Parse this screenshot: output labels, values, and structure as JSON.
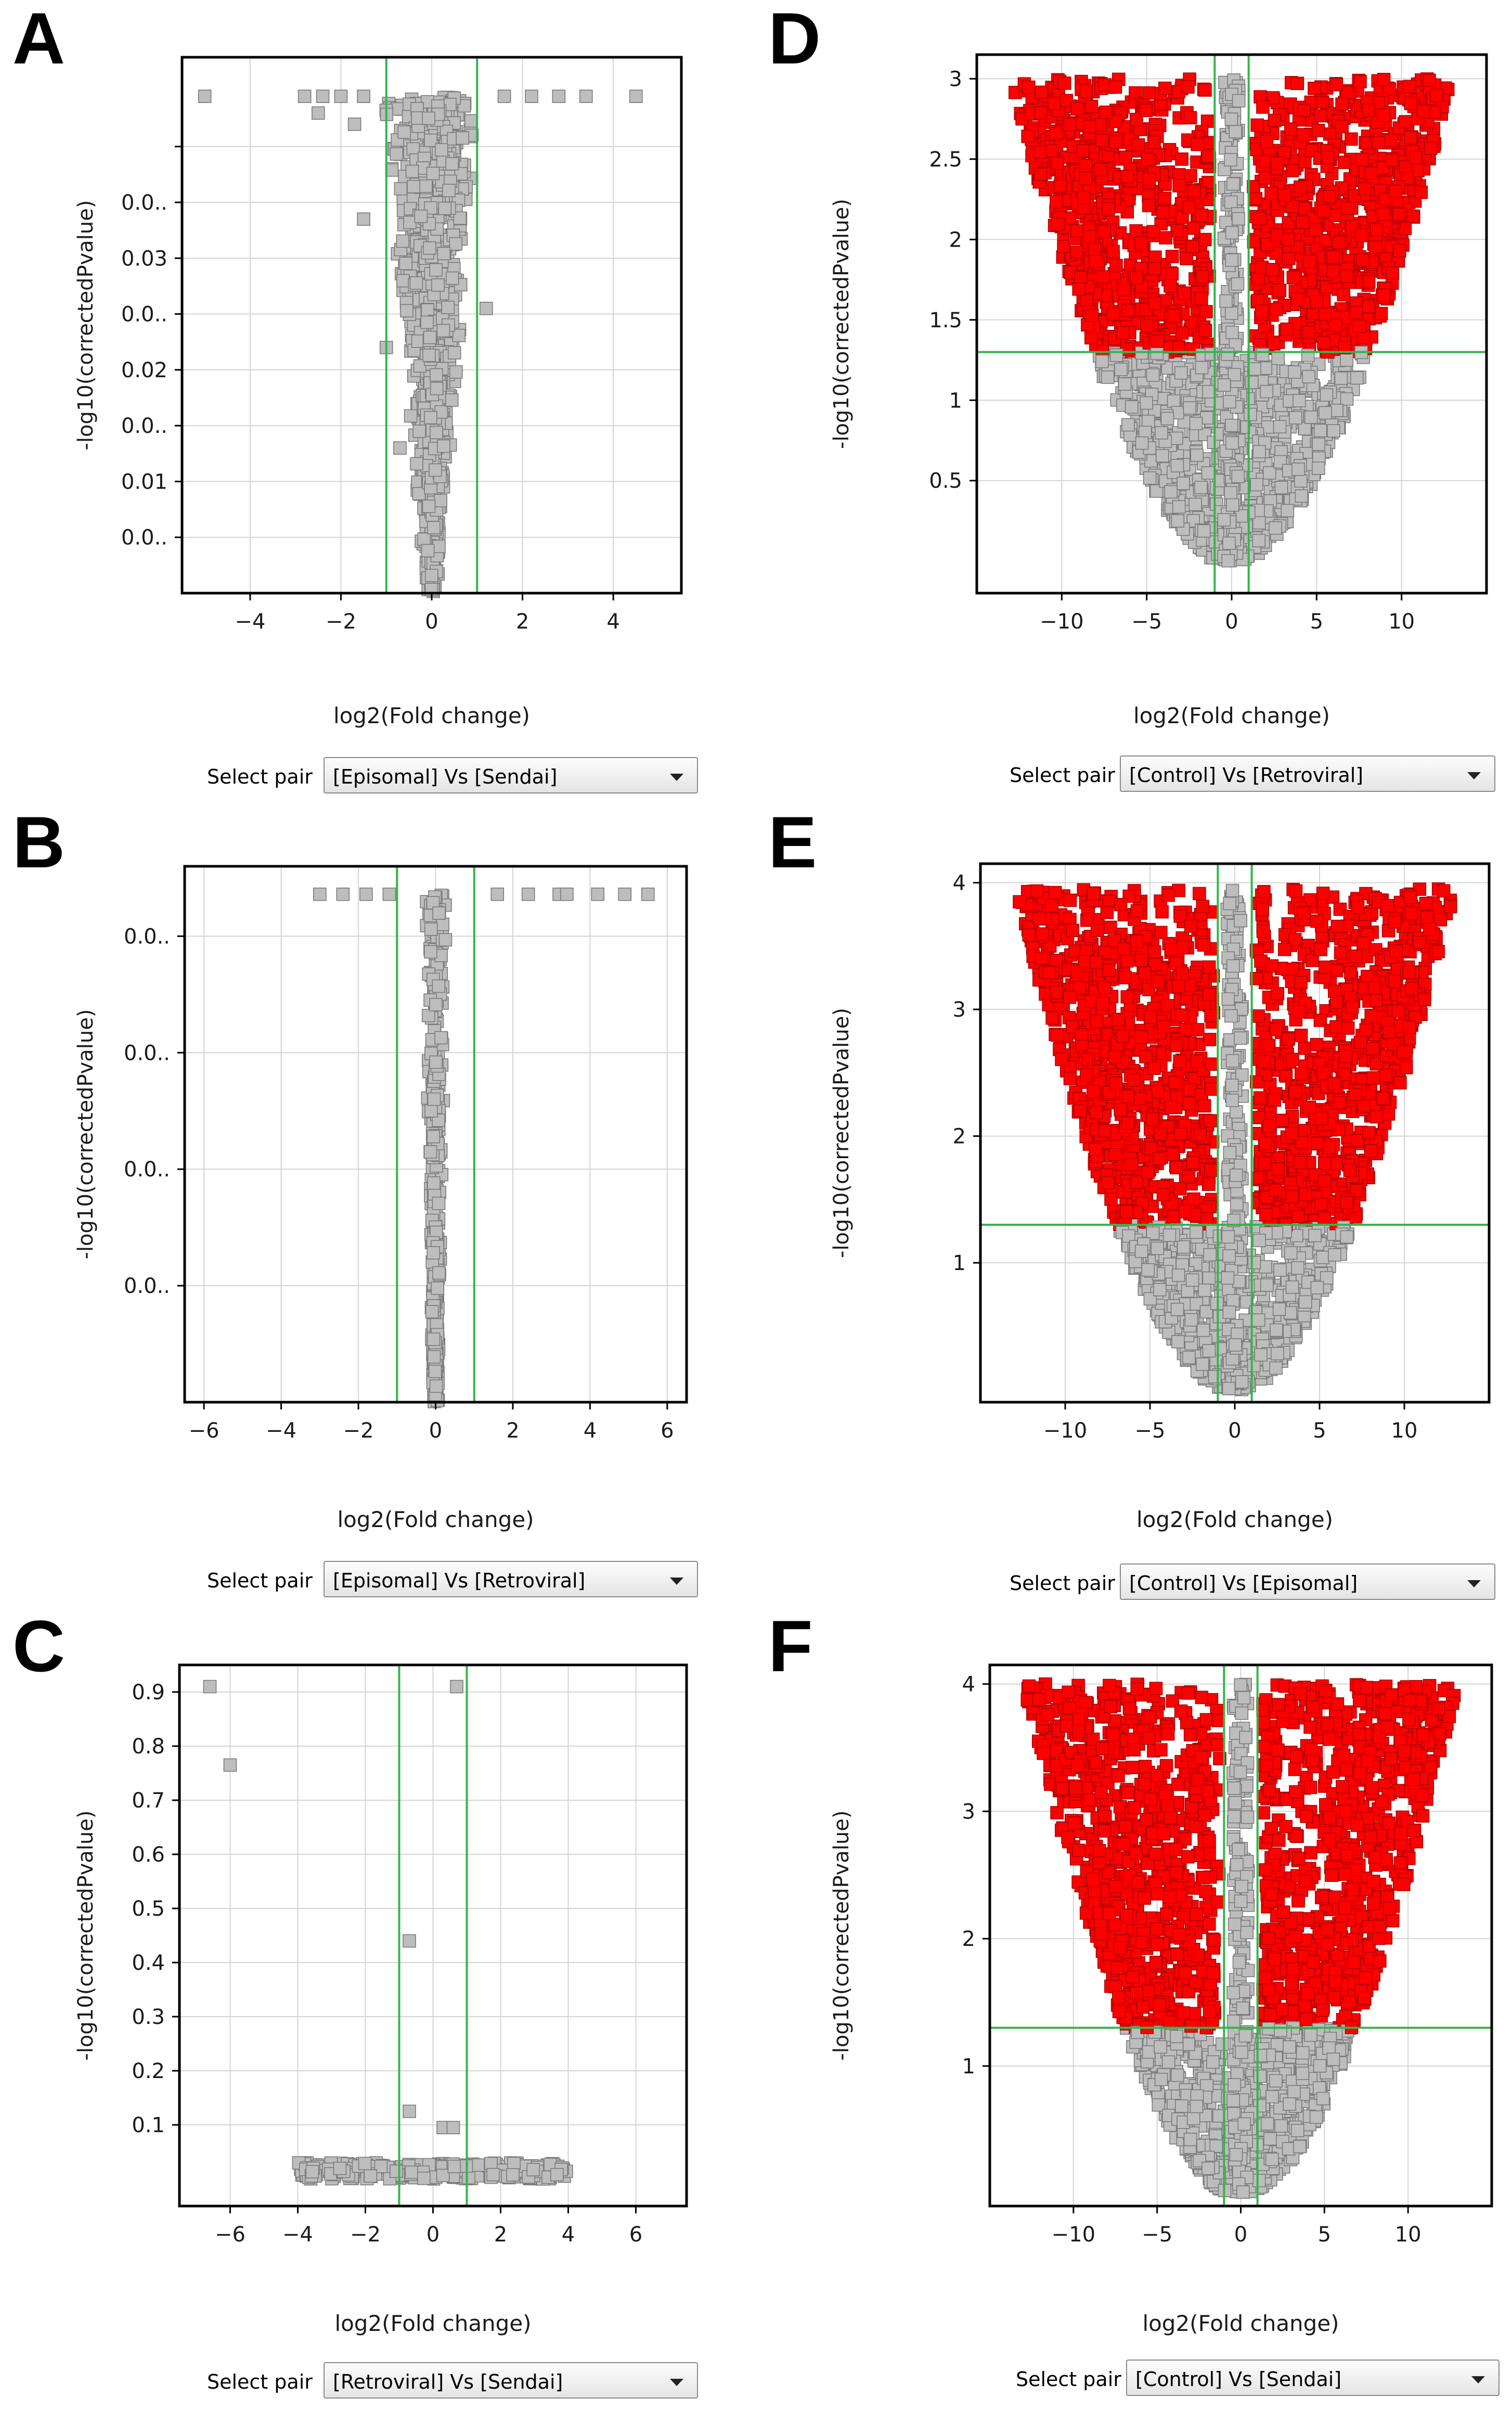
{
  "common": {
    "xlabel": "log2(Fold change)",
    "ylabel": "-log10(correctedPvalue)",
    "select_label": "Select pair",
    "colors": {
      "significant": "#ff0000",
      "nonsignificant": "#bdbdbd",
      "threshold": "#33b54a",
      "grid": "#d4d4d4"
    }
  },
  "panels": [
    {
      "letter": "A",
      "select_value": "[Episomal] Vs [Sendai]"
    },
    {
      "letter": "B",
      "select_value": "[Episomal] Vs [Retroviral]"
    },
    {
      "letter": "C",
      "select_value": "[Retroviral] Vs [Sendai]"
    },
    {
      "letter": "D",
      "select_value": "[Control] Vs [Retroviral]"
    },
    {
      "letter": "E",
      "select_value": "[Control] Vs [Episomal]"
    },
    {
      "letter": "F",
      "select_value": "[Control] Vs [Sendai]"
    }
  ],
  "chart_data": [
    {
      "panel": "A",
      "type": "scatter",
      "title": "",
      "xlabel": "log2(Fold change)",
      "ylabel": "-log10(correctedPvalue)",
      "xlim": [
        -5.5,
        5.5
      ],
      "ylim": [
        0,
        0.048
      ],
      "xticks": [
        -4,
        -2,
        0,
        2,
        4
      ],
      "yticks": [
        0.005,
        0.01,
        0.015,
        0.02,
        0.025,
        0.03,
        0.035,
        0.04
      ],
      "ytick_labels": [
        "0.0..",
        "0.01",
        "0.0..",
        "0.02",
        "0.0..",
        "0.03",
        "0.0.."
      ],
      "ytick_label_values": [
        0.005,
        0.01,
        0.015,
        0.02,
        0.025,
        0.03,
        0.035
      ],
      "xtick_labels": [
        "−4",
        "−2",
        "0",
        "2",
        "4"
      ],
      "vlines": [
        -1,
        1
      ],
      "hline": null,
      "grid": true,
      "legend": "none",
      "points": [
        [
          -5,
          0.0445
        ],
        [
          4.5,
          0.0445
        ],
        [
          -2.8,
          0.0445
        ],
        [
          -2.4,
          0.0445
        ],
        [
          -2.0,
          0.0445
        ],
        [
          -1.5,
          0.0445
        ],
        [
          1.6,
          0.0445
        ],
        [
          2.2,
          0.0445
        ],
        [
          2.8,
          0.0445
        ],
        [
          3.4,
          0.0445
        ],
        [
          -2.5,
          0.043
        ],
        [
          -1.7,
          0.042
        ],
        [
          -1.5,
          0.0335
        ],
        [
          1.2,
          0.0255
        ],
        [
          -1.0,
          0.022
        ],
        [
          -0.7,
          0.013
        ]
      ],
      "cloud": {
        "shape": "funnel",
        "x_center": 0,
        "x_halfwidth_top": 1.1,
        "x_halfwidth_bottom": 0.15,
        "y_from": 0,
        "y_to": 0.0445,
        "count": 950,
        "significant": false
      }
    },
    {
      "panel": "B",
      "type": "scatter",
      "title": "",
      "xlabel": "log2(Fold change)",
      "ylabel": "-log10(correctedPvalue)",
      "xlim": [
        -6.5,
        6.5
      ],
      "ylim": [
        0,
        0.023
      ],
      "xticks": [
        -6,
        -4,
        -2,
        0,
        2,
        4,
        6
      ],
      "yticks": [
        0.005,
        0.01,
        0.015,
        0.02
      ],
      "ytick_labels": [
        "0.0..",
        "0.0..",
        "0.0..",
        "0.0.."
      ],
      "ytick_label_values": [
        0.005,
        0.01,
        0.015,
        0.02
      ],
      "xtick_labels": [
        "−6",
        "−4",
        "−2",
        "0",
        "2",
        "4",
        "6"
      ],
      "vlines": [
        -1,
        1
      ],
      "hline": null,
      "grid": true,
      "legend": "none",
      "points": [
        [
          -3.0,
          0.0218
        ],
        [
          -2.4,
          0.0218
        ],
        [
          -1.8,
          0.0218
        ],
        [
          -1.2,
          0.0218
        ],
        [
          1.6,
          0.0218
        ],
        [
          2.4,
          0.0218
        ],
        [
          3.2,
          0.0218
        ],
        [
          3.4,
          0.0218
        ],
        [
          4.2,
          0.0218
        ],
        [
          4.9,
          0.0218
        ],
        [
          5.5,
          0.0218
        ]
      ],
      "cloud": {
        "shape": "column",
        "x_center": 0,
        "x_halfwidth_top": 0.3,
        "x_halfwidth_bottom": 0.08,
        "y_from": 0,
        "y_to": 0.0218,
        "count": 380,
        "significant": false
      }
    },
    {
      "panel": "C",
      "type": "scatter",
      "title": "",
      "xlabel": "log2(Fold change)",
      "ylabel": "-log10(correctedPvalue)",
      "xlim": [
        -7.5,
        7.5
      ],
      "ylim": [
        -0.05,
        0.95
      ],
      "xticks": [
        -6,
        -4,
        -2,
        0,
        2,
        4,
        6
      ],
      "yticks": [
        0.1,
        0.2,
        0.3,
        0.4,
        0.5,
        0.6,
        0.7,
        0.8,
        0.9
      ],
      "ytick_labels": [
        "0.1",
        "0.2",
        "0.3",
        "0.4",
        "0.5",
        "0.6",
        "0.7",
        "0.8",
        "0.9"
      ],
      "ytick_label_values": [
        0.1,
        0.2,
        0.3,
        0.4,
        0.5,
        0.6,
        0.7,
        0.8,
        0.9
      ],
      "xtick_labels": [
        "−6",
        "−4",
        "−2",
        "0",
        "2",
        "4",
        "6"
      ],
      "vlines": [
        -1,
        1
      ],
      "hline": null,
      "grid": true,
      "legend": "none",
      "points": [
        [
          -6.6,
          0.91
        ],
        [
          -6.0,
          0.765
        ],
        [
          0.7,
          0.91
        ],
        [
          -0.7,
          0.44
        ],
        [
          -0.7,
          0.125
        ],
        [
          0.3,
          0.095
        ],
        [
          0.6,
          0.095
        ]
      ],
      "cloud": {
        "shape": "band",
        "x_center": 0,
        "x_halfwidth_top": 4.0,
        "x_halfwidth_bottom": 3.9,
        "y_from": 0.0,
        "y_to": 0.03,
        "count": 260,
        "significant": false
      }
    },
    {
      "panel": "D",
      "type": "scatter",
      "title": "",
      "xlabel": "log2(Fold change)",
      "ylabel": "-log10(correctedPvalue)",
      "xlim": [
        -15,
        15
      ],
      "ylim": [
        -0.2,
        3.15
      ],
      "xticks": [
        -10,
        -5,
        0,
        5,
        10
      ],
      "yticks": [
        0.5,
        1,
        1.5,
        2,
        2.5,
        3
      ],
      "ytick_labels": [
        "0.5",
        "1",
        "1.5",
        "2",
        "2.5",
        "3"
      ],
      "ytick_label_values": [
        0.5,
        1,
        1.5,
        2,
        2.5,
        3
      ],
      "xtick_labels": [
        "−10",
        "−5",
        "0",
        "5",
        "10"
      ],
      "vlines": [
        -1,
        1
      ],
      "hline": 1.3,
      "grid": true,
      "legend": "none",
      "cloud": {
        "shape": "volcano",
        "x_halfwidth_at_top": 13,
        "y_top": 3.0,
        "threshold": 1.3,
        "fc": 1,
        "count": 2200
      }
    },
    {
      "panel": "E",
      "type": "scatter",
      "title": "",
      "xlabel": "log2(Fold change)",
      "ylabel": "-log10(correctedPvalue)",
      "xlim": [
        -15,
        15
      ],
      "ylim": [
        -0.1,
        4.15
      ],
      "xticks": [
        -10,
        -5,
        0,
        5,
        10
      ],
      "yticks": [
        1,
        2,
        3,
        4
      ],
      "ytick_labels": [
        "1",
        "2",
        "3",
        "4"
      ],
      "ytick_label_values": [
        1,
        2,
        3,
        4
      ],
      "xtick_labels": [
        "−10",
        "−5",
        "0",
        "5",
        "10"
      ],
      "vlines": [
        -1,
        1
      ],
      "hline": 1.3,
      "grid": true,
      "legend": "none",
      "cloud": {
        "shape": "volcano",
        "x_halfwidth_at_top": 13,
        "y_top": 3.95,
        "threshold": 1.3,
        "fc": 1,
        "count": 2200
      }
    },
    {
      "panel": "F",
      "type": "scatter",
      "title": "",
      "xlabel": "log2(Fold change)",
      "ylabel": "-log10(correctedPvalue)",
      "xlim": [
        -15,
        15
      ],
      "ylim": [
        -0.1,
        4.15
      ],
      "xticks": [
        -10,
        -5,
        0,
        5,
        10
      ],
      "yticks": [
        1,
        2,
        3,
        4
      ],
      "ytick_labels": [
        "1",
        "2",
        "3",
        "4"
      ],
      "ytick_label_values": [
        1,
        2,
        3,
        4
      ],
      "xtick_labels": [
        "−10",
        "−5",
        "0",
        "5",
        "10"
      ],
      "vlines": [
        -1,
        1
      ],
      "hline": 1.3,
      "grid": true,
      "legend": "none",
      "cloud": {
        "shape": "volcano",
        "x_halfwidth_at_top": 13,
        "y_top": 4.0,
        "threshold": 1.3,
        "fc": 1,
        "count": 2200
      }
    }
  ]
}
